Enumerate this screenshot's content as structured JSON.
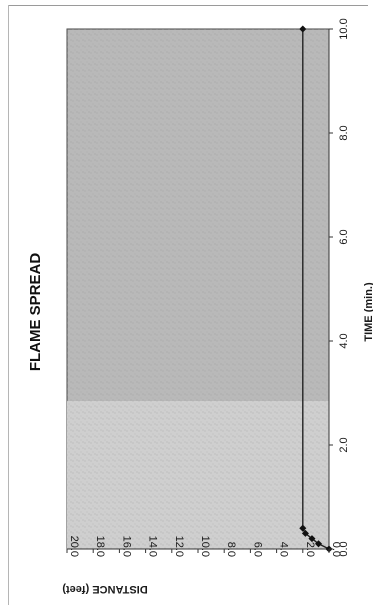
{
  "chart_data": {
    "type": "line",
    "title": "FLAME SPREAD",
    "xlabel": "TIME (min.)",
    "ylabel": "DISTANCE (feet)",
    "xlim": [
      0,
      10.0
    ],
    "ylim": [
      0,
      20.0
    ],
    "x_ticks": [
      "0.0",
      "2.0",
      "4.0",
      "6.0",
      "8.0",
      "10.0"
    ],
    "y_ticks": [
      "20.0",
      "18.0",
      "16.0",
      "14.0",
      "12.0",
      "10.0",
      "8.0",
      "6.0",
      "4.0",
      "2.0",
      "0.0"
    ],
    "series": [
      {
        "x": [
          0.0,
          0.1,
          0.2,
          0.3,
          0.4,
          10.0
        ],
        "y": [
          0.0,
          0.8,
          1.3,
          1.8,
          2.0,
          2.0
        ]
      }
    ],
    "background": "stippled gray plot area, lighter texture for time below about 2.8 min"
  },
  "colors": {
    "plot_fill_dark": "#b9b9b9",
    "plot_fill_light": "#cfcfcf",
    "line": "#222222",
    "marker": "#111111"
  }
}
